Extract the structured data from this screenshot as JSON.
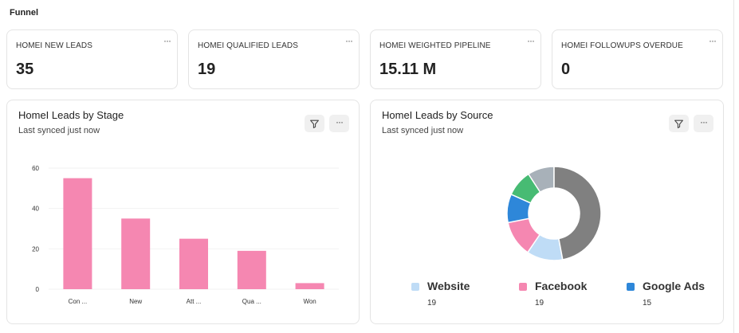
{
  "section": {
    "title": "Funnel"
  },
  "kpis": [
    {
      "label": "HOMEI NEW LEADS",
      "value": "35"
    },
    {
      "label": "HOMEI QUALIFIED LEADS",
      "value": "19"
    },
    {
      "label": "HOMEI WEIGHTED PIPELINE",
      "value": "15.11 M"
    },
    {
      "label": "HOMEI FOLLOWUPS OVERDUE",
      "value": "0"
    }
  ],
  "more_label": "···",
  "cards": {
    "stage": {
      "title": "HomeI Leads by Stage",
      "subtitle": "Last synced just now"
    },
    "source": {
      "title": "HomeI Leads by Source",
      "subtitle": "Last synced just now"
    }
  },
  "icons": {
    "filter": "filter-icon",
    "more": "more-icon"
  },
  "colors": {
    "bar": "#f587b1",
    "website": "#bfdcf6",
    "facebook": "#f587b1",
    "google_ads": "#2e87d9",
    "slice_green": "#47bb73",
    "slice_light_gray": "#a8b1b9",
    "slice_dark_gray": "#808080"
  },
  "chart_data": [
    {
      "type": "bar",
      "categories": [
        "Con ...",
        "New",
        "Att ...",
        "Qua ...",
        "Won"
      ],
      "values": [
        55,
        35,
        25,
        19,
        3
      ],
      "yticks": [
        0,
        20,
        40,
        60
      ],
      "ylim": [
        0,
        60
      ],
      "grid": true,
      "title": "HomeI Leads by Stage"
    },
    {
      "type": "pie",
      "donut": true,
      "title": "HomeI Leads by Source",
      "legend_position": "bottom",
      "slices": [
        {
          "name": "Website",
          "value": 19,
          "color": "#bfdcf6"
        },
        {
          "name": "Facebook",
          "value": 19,
          "color": "#f587b1"
        },
        {
          "name": "Google Ads",
          "value": 15,
          "color": "#2e87d9"
        },
        {
          "value": 14,
          "color": "#47bb73"
        },
        {
          "value": 14,
          "color": "#a8b1b9"
        },
        {
          "value": 72,
          "color": "#808080"
        }
      ],
      "legend": [
        {
          "name": "Website",
          "count": "19",
          "color": "#bfdcf6"
        },
        {
          "name": "Facebook",
          "count": "19",
          "color": "#f587b1"
        },
        {
          "name": "Google Ads",
          "count": "15",
          "color": "#2e87d9"
        }
      ]
    }
  ]
}
